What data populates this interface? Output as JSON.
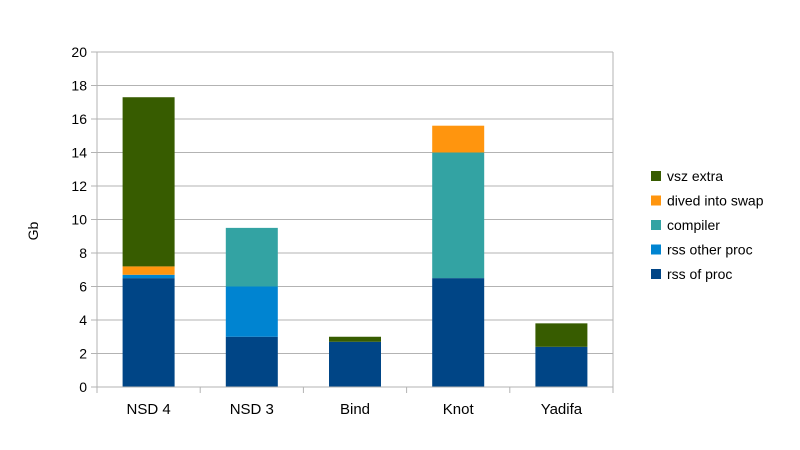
{
  "chart_data": {
    "type": "bar",
    "stacked": true,
    "categories": [
      "NSD 4",
      "NSD 3",
      "Bind",
      "Knot",
      "Yadifa"
    ],
    "series": [
      {
        "name": "rss of proc",
        "color": "#004586",
        "values": [
          6.5,
          3.0,
          2.7,
          6.5,
          2.4
        ]
      },
      {
        "name": "rss other proc",
        "color": "#0084d1",
        "values": [
          0.2,
          3.0,
          0.0,
          0.0,
          0.0
        ]
      },
      {
        "name": "compiler",
        "color": "#33a3a3",
        "values": [
          0.0,
          3.5,
          0.0,
          7.5,
          0.0
        ]
      },
      {
        "name": "dived into swap",
        "color": "#ff950e",
        "values": [
          0.5,
          0.0,
          0.0,
          1.6,
          0.0
        ]
      },
      {
        "name": "vsz extra",
        "color": "#375c00",
        "values": [
          10.1,
          0.0,
          0.3,
          0.0,
          1.4
        ]
      }
    ],
    "ylabel": "Gb",
    "xlabel": "",
    "title": "",
    "ylim": [
      0,
      20
    ],
    "yticks": [
      0,
      2,
      4,
      6,
      8,
      10,
      12,
      14,
      16,
      18,
      20
    ],
    "grid": true,
    "legend_position": "right",
    "legend_order": [
      "vsz extra",
      "dived into swap",
      "compiler",
      "rss other proc",
      "rss of proc"
    ]
  }
}
